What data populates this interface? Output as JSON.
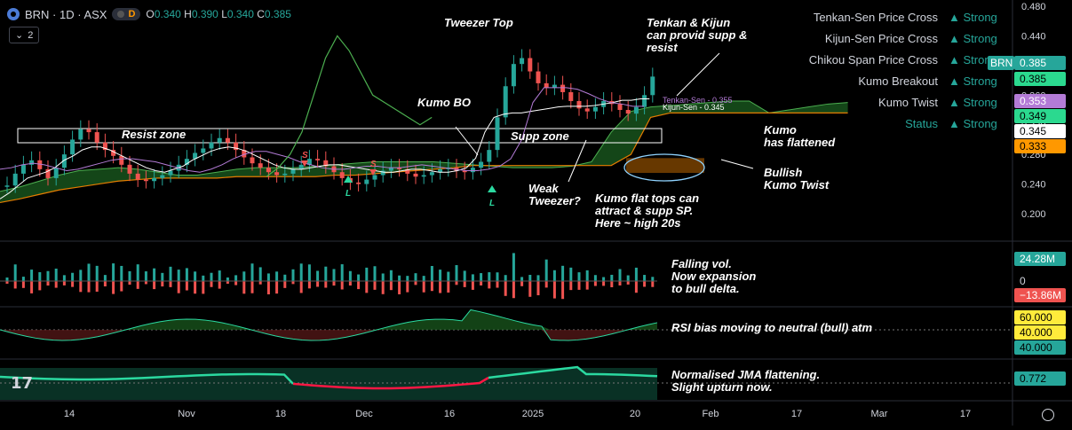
{
  "header": {
    "symbol": "BRN · 1D · ASX",
    "mode_badge": "D",
    "ohlc": {
      "o_label": "O",
      "o": "0.340",
      "h_label": "H",
      "h": "0.390",
      "l_label": "L",
      "l": "0.340",
      "c_label": "C",
      "c": "0.385"
    },
    "collapse_count": "2"
  },
  "colors": {
    "background": "#000000",
    "up": "#26a69a",
    "down": "#ef5350",
    "bull_signal": "#2bd9a0",
    "tenkan": "#ffffff",
    "kijun": "#b37bd6",
    "chikou": "#4caf50",
    "kumo_green": "#1b5e20",
    "kumo_orange": "#e57c00",
    "annotation": "#ffffff"
  },
  "signal_table": [
    {
      "label": "Tenkan-Sen Price Cross",
      "status": "▲ Strong"
    },
    {
      "label": "Kijun-Sen Price Cross",
      "status": "▲ Strong"
    },
    {
      "label": "Chikou Span Price Cross",
      "status": "▲ Strong"
    },
    {
      "label": "Kumo Breakout",
      "status": "▲ Strong"
    },
    {
      "label": "Kumo Twist",
      "status": "▲ Strong"
    },
    {
      "label": "Status",
      "status": "▲ Strong"
    }
  ],
  "annotations": {
    "tweezer_top": "Tweezer Top",
    "tenkan_kijun_note": [
      "Tenkan & Kijun",
      "can provid supp &",
      "resist"
    ],
    "kumo_bo": "Kumo BO",
    "resist_zone": "Resist zone",
    "supp_zone": "Supp zone",
    "weak_tweezer": [
      "Weak",
      "Tweezer?"
    ],
    "kumo_flat_tops": [
      "Kumo flat tops can",
      "attract & supp SP.",
      "Here ~ high 20s"
    ],
    "kumo_flattened": [
      "Kumo",
      "has flattened"
    ],
    "bullish_twist": [
      "Bullish",
      "Kumo Twist"
    ],
    "falling_vol": [
      "Falling vol.",
      "Now expansion",
      "to bull delta."
    ],
    "rsi_bias": "RSI bias moving to neutral (bull) atm",
    "jma_note": [
      "Normalised JMA flattening.",
      "Slight upturn now."
    ],
    "tenkan_line_label": "Tenkan-Sen - 0.355",
    "kijun_line_label": "Kijun-Sen - 0.345",
    "signal_s": "S",
    "signal_l": "L"
  },
  "price_badges": [
    {
      "value": "0.385",
      "bg": "#26a69a",
      "fg": "#ffffff",
      "with_ticker": true,
      "ticker": "BRN"
    },
    {
      "value": "0.385",
      "bg": "#2bd98f",
      "fg": "#000000"
    },
    {
      "value": "0.353",
      "bg": "#b37bd6",
      "fg": "#ffffff"
    },
    {
      "value": "0.349",
      "bg": "#2bd98f",
      "fg": "#000000"
    },
    {
      "value": "0.345",
      "bg": "#ffffff",
      "fg": "#000000"
    },
    {
      "value": "0.333",
      "bg": "#ff9800",
      "fg": "#000000"
    }
  ],
  "indicator_badges": {
    "volume_up": "24.28M",
    "volume_zero": "0",
    "volume_down": "−13.86M",
    "rsi_upper": "60.000",
    "rsi_mid": "40.000",
    "rsi_lower": "40.000",
    "jma": "0.772"
  },
  "chart_data": {
    "type": "candlestick",
    "symbol": "BRN",
    "interval": "1D",
    "ylim": [
      0.18,
      0.48
    ],
    "yticks": [
      "0.480",
      "0.440",
      "0.400",
      "0.360",
      "0.320",
      "0.280",
      "0.240",
      "0.200"
    ],
    "xtick_labels": [
      "14",
      "Nov",
      "18",
      "Dec",
      "16",
      "2025",
      "20",
      "Feb",
      "17",
      "Mar",
      "17"
    ],
    "candles_close": [
      0.238,
      0.254,
      0.266,
      0.272,
      0.26,
      0.248,
      0.262,
      0.28,
      0.3,
      0.314,
      0.31,
      0.296,
      0.286,
      0.278,
      0.266,
      0.254,
      0.246,
      0.244,
      0.248,
      0.252,
      0.258,
      0.266,
      0.274,
      0.282,
      0.288,
      0.296,
      0.302,
      0.296,
      0.286,
      0.276,
      0.268,
      0.262,
      0.256,
      0.252,
      0.254,
      0.26,
      0.266,
      0.274,
      0.272,
      0.264,
      0.256,
      0.248,
      0.242,
      0.24,
      0.246,
      0.252,
      0.258,
      0.262,
      0.26,
      0.254,
      0.25,
      0.252,
      0.256,
      0.26,
      0.262,
      0.258,
      0.256,
      0.262,
      0.27,
      0.286,
      0.33,
      0.372,
      0.402,
      0.41,
      0.392,
      0.376,
      0.37,
      0.374,
      0.364,
      0.352,
      0.342,
      0.338,
      0.344,
      0.352,
      0.348,
      0.34,
      0.335,
      0.344,
      0.36,
      0.385
    ],
    "tenkan": [
      0.22,
      0.228,
      0.238,
      0.248,
      0.252,
      0.256,
      0.262,
      0.272,
      0.278,
      0.286,
      0.29,
      0.29,
      0.286,
      0.28,
      0.274,
      0.268,
      0.262,
      0.258,
      0.256,
      0.26,
      0.264,
      0.272,
      0.278,
      0.284,
      0.288,
      0.29,
      0.288,
      0.284,
      0.278,
      0.272,
      0.266,
      0.262,
      0.26,
      0.26,
      0.262,
      0.264,
      0.266,
      0.266,
      0.264,
      0.262,
      0.26,
      0.258,
      0.256,
      0.256,
      0.258,
      0.26,
      0.26,
      0.258,
      0.256,
      0.256,
      0.258,
      0.262,
      0.275,
      0.31,
      0.33,
      0.334,
      0.336,
      0.336,
      0.338,
      0.34,
      0.342,
      0.344,
      0.345,
      0.345,
      0.345,
      0.346,
      0.348,
      0.35,
      0.353,
      0.353,
      0.355,
      0.355
    ],
    "kijun": [
      0.26,
      0.262,
      0.266,
      0.268,
      0.266,
      0.262,
      0.258,
      0.26,
      0.264,
      0.268,
      0.272,
      0.274,
      0.274,
      0.272,
      0.27,
      0.266,
      0.262,
      0.258,
      0.256,
      0.26,
      0.266,
      0.274,
      0.28,
      0.284,
      0.284,
      0.28,
      0.276,
      0.27,
      0.266,
      0.262,
      0.26,
      0.26,
      0.262,
      0.264,
      0.264,
      0.262,
      0.262,
      0.264,
      0.266,
      0.264,
      0.262,
      0.26,
      0.258,
      0.258,
      0.26,
      0.264,
      0.274,
      0.3,
      0.35,
      0.37,
      0.37,
      0.37,
      0.368,
      0.362,
      0.355,
      0.35,
      0.348,
      0.345,
      0.345
    ],
    "chikou": [
      0.25,
      0.262,
      0.28,
      0.31,
      0.36,
      0.41,
      0.44,
      0.42,
      0.39,
      0.36,
      0.35,
      0.34,
      0.33,
      0.32,
      0.33
    ],
    "kumo_span_a": [
      0.23,
      0.236,
      0.244,
      0.252,
      0.258,
      0.26,
      0.262,
      0.26,
      0.256,
      0.252,
      0.252,
      0.256,
      0.26,
      0.262,
      0.262,
      0.262,
      0.264,
      0.266,
      0.268,
      0.27,
      0.27,
      0.27,
      0.27,
      0.268,
      0.266,
      0.264,
      0.262,
      0.262,
      0.262,
      0.264,
      0.27,
      0.31,
      0.338,
      0.344,
      0.346,
      0.348,
      0.35,
      0.352,
      0.352,
      0.336,
      0.34,
      0.344,
      0.348,
      0.35
    ],
    "kumo_span_b": [
      0.215,
      0.22,
      0.226,
      0.232,
      0.236,
      0.24,
      0.244,
      0.246,
      0.248,
      0.248,
      0.248,
      0.248,
      0.25,
      0.25,
      0.25,
      0.25,
      0.25,
      0.252,
      0.252,
      0.254,
      0.256,
      0.258,
      0.26,
      0.262,
      0.265,
      0.265,
      0.265,
      0.265,
      0.265,
      0.265,
      0.265,
      0.265,
      0.28,
      0.33,
      0.336,
      0.336,
      0.336,
      0.336,
      0.336,
      0.336,
      0.336,
      0.336,
      0.336,
      0.336
    ],
    "current_price": 0.385,
    "resist_zone": [
      0.296,
      0.312
    ],
    "supp_zone": [
      0.296,
      0.312
    ],
    "volume_ylabel_up": "24.28M",
    "volume_ylabel_down": "-13.86M",
    "rsi_levels": [
      60,
      40
    ],
    "jma_last": 0.772
  }
}
